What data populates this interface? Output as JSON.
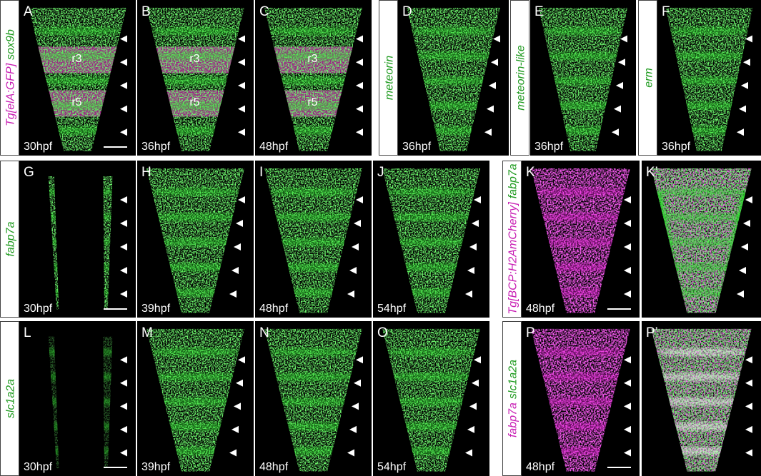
{
  "panels": [
    {
      "letter": "A",
      "time": "30hpf",
      "regions": [
        "r3",
        "r5"
      ]
    },
    {
      "letter": "B",
      "time": "36hpf",
      "regions": [
        "r3",
        "r5"
      ]
    },
    {
      "letter": "C",
      "time": "48hpf",
      "regions": [
        "r3",
        "r5"
      ]
    },
    {
      "letter": "D",
      "time": "36hpf"
    },
    {
      "letter": "E",
      "time": "36hpf"
    },
    {
      "letter": "F",
      "time": "36hpf"
    },
    {
      "letter": "G",
      "time": "30hpf"
    },
    {
      "letter": "H",
      "time": "39hpf"
    },
    {
      "letter": "I",
      "time": "48hpf"
    },
    {
      "letter": "J",
      "time": "54hpf"
    },
    {
      "letter": "K",
      "time": "48hpf"
    },
    {
      "letter": "K’"
    },
    {
      "letter": "L",
      "time": "30hpf"
    },
    {
      "letter": "M",
      "time": "39hpf"
    },
    {
      "letter": "N",
      "time": "48hpf"
    },
    {
      "letter": "O",
      "time": "54hpf"
    },
    {
      "letter": "P",
      "time": "48hpf"
    },
    {
      "letter": "P’"
    }
  ],
  "side_labels": [
    [
      {
        "text": "Tg[elA:GFP]",
        "color": "#c81eb4"
      },
      {
        "text": "sox9b",
        "color": "#1e9a1e"
      }
    ],
    [
      {
        "text": "meteorin",
        "color": "#1e9a1e"
      }
    ],
    [
      {
        "text": "meteorin-like",
        "color": "#1e9a1e"
      }
    ],
    [
      {
        "text": "erm",
        "color": "#1e9a1e"
      }
    ],
    [
      {
        "text": "fabp7a",
        "color": "#1e9a1e"
      }
    ],
    [
      {
        "text": "Tg[BCP:H2AmCherry]",
        "color": "#c81eb4"
      },
      {
        "text": "fabp7a",
        "color": "#1e9a1e"
      }
    ],
    [
      {
        "text": "slc1a2a",
        "color": "#1e9a1e"
      }
    ],
    [
      {
        "text": "fabp7a",
        "color": "#c81eb4"
      },
      {
        "text": "slc1a2a",
        "color": "#1e9a1e"
      }
    ]
  ]
}
